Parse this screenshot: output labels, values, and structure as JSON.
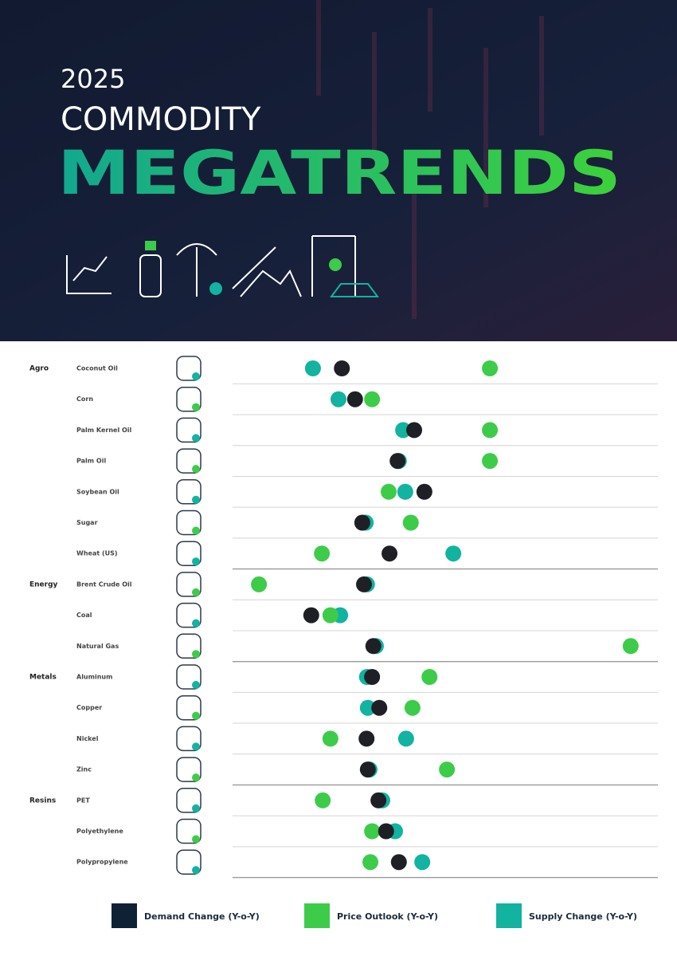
{
  "header": {
    "year": "2025",
    "line1": "COMMODITY",
    "line2": "MEGATRENDS"
  },
  "chart_data": {
    "type": "dot",
    "groups": [
      "Agro",
      null,
      null,
      null,
      null,
      null,
      null,
      "Energy",
      null,
      null,
      "Metals",
      null,
      null,
      null,
      "Resins",
      null,
      null
    ],
    "categories": [
      "Coconut Oil",
      "Corn",
      "Palm Kernel Oil",
      "Palm Oil",
      "Soybean Oil",
      "Sugar",
      "Wheat (US)",
      "Brent Crude Oil",
      "Coal",
      "Natural Gas",
      "Aluminum",
      "Copper",
      "Nickel",
      "Zinc",
      "PET",
      "Polyethylene",
      "Polypropylene"
    ],
    "xlim": [
      0,
      100
    ],
    "series": [
      {
        "name": "Demand Change (Y-o-Y)",
        "color": "#1e2026",
        "legend_color": "#0f2235",
        "values": [
          25.7,
          28.8,
          42.7,
          38.8,
          45.1,
          30.5,
          36.9,
          30.9,
          18.5,
          33.1,
          32.8,
          34.5,
          31.5,
          31.8,
          34.3,
          36.1,
          39.1
        ]
      },
      {
        "name": "Price Outlook (Y-o-Y)",
        "color": "#3dcc4a",
        "values": [
          60.5,
          32.8,
          60.5,
          60.5,
          36.7,
          41.9,
          21.0,
          6.2,
          23.0,
          93.6,
          46.3,
          42.3,
          23.0,
          50.4,
          21.2,
          32.8,
          32.4
        ]
      },
      {
        "name": "Supply Change (Y-o-Y)",
        "color": "#12b3a0",
        "values": [
          18.9,
          24.9,
          40.1,
          39.1,
          40.6,
          31.3,
          51.9,
          31.6,
          25.3,
          33.7,
          31.6,
          31.8,
          40.8,
          32.2,
          35.2,
          38.2,
          44.6
        ]
      }
    ]
  }
}
